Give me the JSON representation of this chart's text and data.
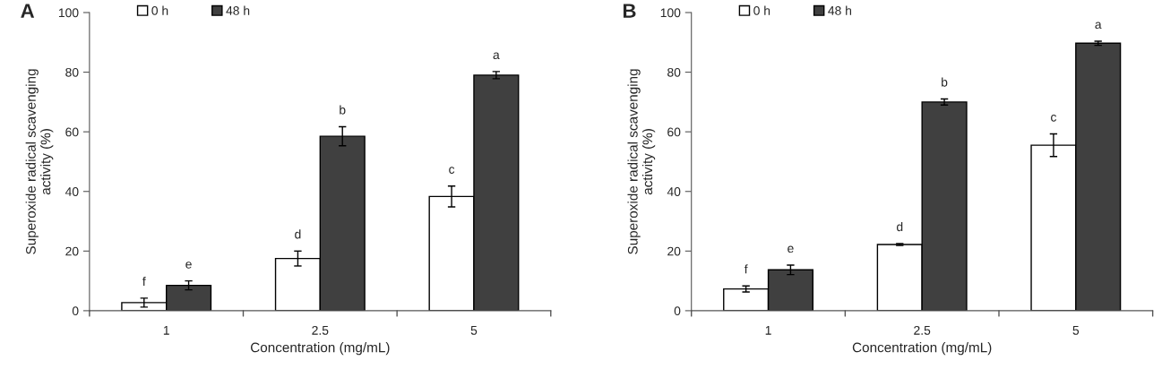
{
  "chart_data": [
    {
      "type": "bar",
      "title": "A",
      "xlabel": "Concentration (mg/mL)",
      "ylabel": "Superoxide radical scavenging\nactivity (%)",
      "categories": [
        "1",
        "2.5",
        "5"
      ],
      "series": [
        {
          "name": "0 h",
          "color": "#ffffff",
          "values": [
            2.7,
            17.5,
            38.3
          ],
          "errors": [
            1.5,
            2.5,
            3.5
          ]
        },
        {
          "name": "48 h",
          "color": "#404040",
          "values": [
            8.5,
            58.5,
            79
          ],
          "errors": [
            1.5,
            3.2,
            1.2
          ]
        }
      ],
      "ylim": [
        0,
        100
      ],
      "yticks": [
        0,
        20,
        40,
        60,
        80,
        100
      ],
      "grid": false,
      "legend": "top left",
      "annotations": [
        {
          "text": "f",
          "x": "1",
          "y": 2.7
        },
        {
          "text": "e",
          "x": "1",
          "y": 8.5
        },
        {
          "text": "d",
          "x": "2.5",
          "y": 17.5
        },
        {
          "text": "b",
          "x": "2.5",
          "y": 58.5
        },
        {
          "text": "c",
          "x": "5",
          "y": 38.3
        },
        {
          "text": "a",
          "x": "5",
          "y": 79
        }
      ]
    },
    {
      "type": "bar",
      "title": "B",
      "xlabel": "Concentration (mg/mL)",
      "ylabel": "Superoxide radical scavenging\nactivity (%)",
      "categories": [
        "1",
        "2.5",
        "5"
      ],
      "series": [
        {
          "name": "0 h",
          "color": "#ffffff",
          "values": [
            7.3,
            22.2,
            55.5
          ],
          "errors": [
            1,
            0.3,
            3.8
          ]
        },
        {
          "name": "48 h",
          "color": "#404040",
          "values": [
            13.7,
            70,
            89.7
          ],
          "errors": [
            1.6,
            1,
            0.7
          ]
        }
      ],
      "ylim": [
        0,
        100
      ],
      "yticks": [
        0,
        20,
        40,
        60,
        80,
        100
      ],
      "grid": false,
      "legend": "top left",
      "annotations": [
        {
          "text": "f",
          "x": "1",
          "y": 7.3
        },
        {
          "text": "e",
          "x": "1",
          "y": 13.7
        },
        {
          "text": "d",
          "x": "2.5",
          "y": 22.2
        },
        {
          "text": "b",
          "x": "2.5",
          "y": 70
        },
        {
          "text": "c",
          "x": "5",
          "y": 55.5
        },
        {
          "text": "a",
          "x": "5",
          "y": 89.7
        }
      ]
    }
  ]
}
